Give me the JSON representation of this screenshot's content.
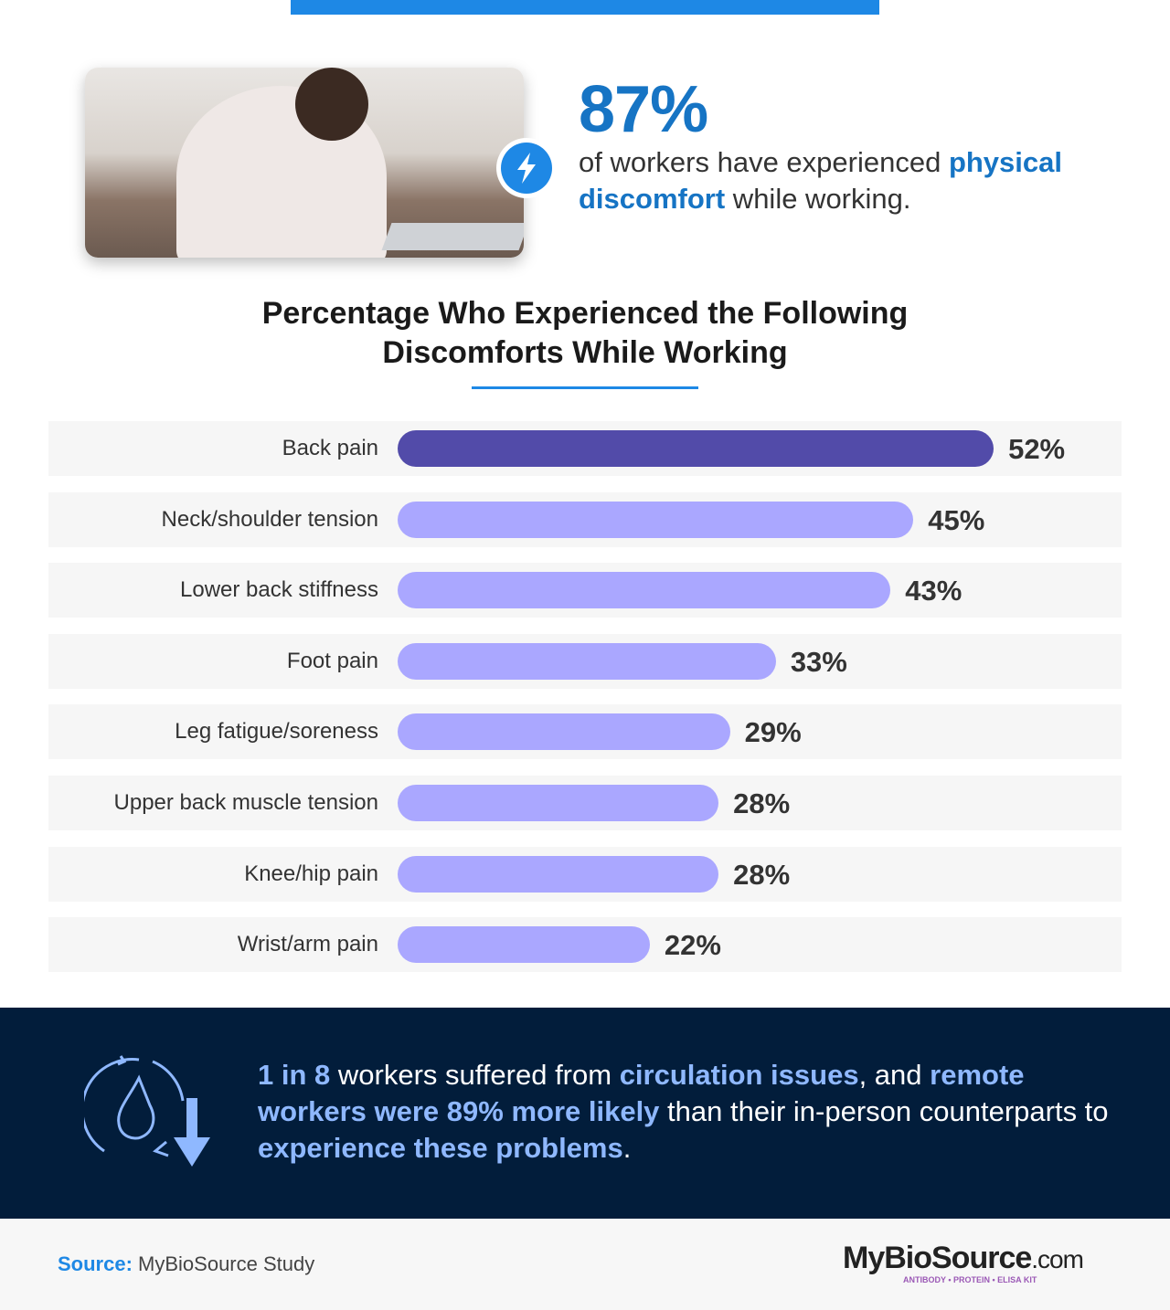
{
  "hero": {
    "stat": "87%",
    "text_pre": "of workers have experienced ",
    "text_highlight": "physical discomfort",
    "text_post": " while working.",
    "icon": "lightning-icon"
  },
  "chart_data": {
    "type": "bar",
    "orientation": "horizontal",
    "title": "Percentage Who Experienced the Following Discomforts While Working",
    "categories": [
      "Back pain",
      "Neck/shoulder tension",
      "Lower back stiffness",
      "Foot pain",
      "Leg fatigue/soreness",
      "Upper back muscle tension",
      "Knee/hip pain",
      "Wrist/arm pain"
    ],
    "values": [
      52,
      45,
      43,
      33,
      29,
      28,
      28,
      22
    ],
    "labels": [
      "52%",
      "45%",
      "43%",
      "33%",
      "29%",
      "28%",
      "28%",
      "22%"
    ],
    "unit": "%",
    "colors": {
      "highlight": "#524ba9",
      "default": "#aaa7ff"
    }
  },
  "callout": {
    "icon": "circulation-drop-down-arrow-icon",
    "parts": [
      {
        "t": "1 in 8",
        "b": true
      },
      {
        "t": " workers suffered from ",
        "b": false
      },
      {
        "t": "circulation issues",
        "b": true
      },
      {
        "t": ", and ",
        "b": false
      },
      {
        "t": "remote workers were 89% more likely",
        "b": true
      },
      {
        "t": " than their in-person counterparts to ",
        "b": false
      },
      {
        "t": "experience these problems",
        "b": true
      },
      {
        "t": ".",
        "b": false
      }
    ]
  },
  "footer": {
    "source_label": "Source:",
    "source_value": " MyBioSource Study",
    "logo_text": "MyBioSource",
    "logo_suffix": ".com",
    "logo_tagline": "ANTIBODY • PROTEIN • ELISA KIT"
  },
  "colors": {
    "accent": "#1e88e5",
    "dark_band": "#021d3b",
    "highlight_text": "#1674c4"
  }
}
